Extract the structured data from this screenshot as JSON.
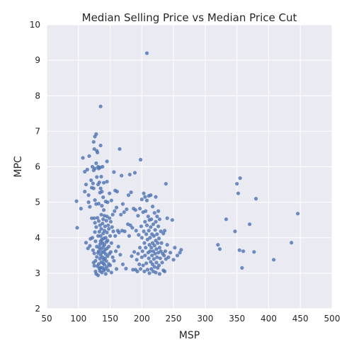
{
  "chart_data": {
    "type": "scatter",
    "title": "Median Selling Price vs Median Price Cut",
    "xlabel": "MSP",
    "ylabel": "MPC",
    "xlim": [
      50,
      500
    ],
    "ylim": [
      2,
      10
    ],
    "xticks": [
      "50",
      "100",
      "150",
      "200",
      "250",
      "300",
      "350",
      "400",
      "450",
      "500"
    ],
    "yticks": [
      "2",
      "3",
      "4",
      "5",
      "6",
      "7",
      "8",
      "9",
      "10"
    ],
    "grid": true,
    "legend": "none",
    "color": "#4c72b0",
    "background": "#eaeaf2",
    "series": [
      {
        "points": [
          [
            97,
            5.03
          ],
          [
            98,
            4.28
          ],
          [
            104,
            4.82
          ],
          [
            107,
            6.25
          ],
          [
            110,
            5.86
          ],
          [
            110,
            5.3
          ],
          [
            112,
            5.5
          ],
          [
            112,
            3.86
          ],
          [
            114,
            5.92
          ],
          [
            115,
            3.7
          ],
          [
            116,
            5.2
          ],
          [
            116,
            5.0
          ],
          [
            117,
            6.3
          ],
          [
            118,
            3.77
          ],
          [
            118,
            4.87
          ],
          [
            119,
            3.97
          ],
          [
            120,
            5.62
          ],
          [
            121,
            5.41
          ],
          [
            121,
            4.55
          ],
          [
            122,
            6.0
          ],
          [
            122,
            4.0
          ],
          [
            123,
            5.53
          ],
          [
            123,
            3.65
          ],
          [
            124,
            6.7
          ],
          [
            124,
            5.9
          ],
          [
            124,
            5.39
          ],
          [
            124,
            3.3
          ],
          [
            125,
            6.5
          ],
          [
            125,
            4.55
          ],
          [
            125,
            3.56
          ],
          [
            125,
            3.21
          ],
          [
            126,
            6.85
          ],
          [
            126,
            5.95
          ],
          [
            126,
            5.06
          ],
          [
            126,
            4.42
          ],
          [
            126,
            4.16
          ],
          [
            127,
            3.9
          ],
          [
            127,
            3.35
          ],
          [
            127,
            3.05
          ],
          [
            128,
            6.92
          ],
          [
            128,
            6.1
          ],
          [
            128,
            4.95
          ],
          [
            128,
            4.3
          ],
          [
            128,
            2.98
          ],
          [
            129,
            6.45
          ],
          [
            129,
            5.71
          ],
          [
            129,
            3.75
          ],
          [
            129,
            3.46
          ],
          [
            130,
            6.4
          ],
          [
            130,
            4.56
          ],
          [
            130,
            3.2
          ],
          [
            131,
            6.0
          ],
          [
            131,
            5.5
          ],
          [
            131,
            4.05
          ],
          [
            131,
            3.57
          ],
          [
            131,
            2.94
          ],
          [
            132,
            5.95
          ],
          [
            132,
            4.96
          ],
          [
            132,
            4.47
          ],
          [
            132,
            3.62
          ],
          [
            132,
            3.26
          ],
          [
            133,
            5.56
          ],
          [
            133,
            4.17
          ],
          [
            133,
            3.72
          ],
          [
            133,
            3.13
          ],
          [
            134,
            5.98
          ],
          [
            134,
            5.27
          ],
          [
            134,
            4.35
          ],
          [
            134,
            3.81
          ],
          [
            134,
            3.41
          ],
          [
            134,
            3.06
          ],
          [
            135,
            7.7
          ],
          [
            135,
            6.6
          ],
          [
            135,
            5.39
          ],
          [
            135,
            4.05
          ],
          [
            135,
            3.9
          ],
          [
            135,
            3.51
          ],
          [
            135,
            3.16
          ],
          [
            136,
            5.72
          ],
          [
            136,
            4.65
          ],
          [
            136,
            4.25
          ],
          [
            136,
            3.68
          ],
          [
            136,
            3.31
          ],
          [
            137,
            5.3
          ],
          [
            137,
            4.9
          ],
          [
            137,
            3.95
          ],
          [
            137,
            3.58
          ],
          [
            137,
            3.02
          ],
          [
            138,
            6.0
          ],
          [
            138,
            4.4
          ],
          [
            138,
            3.85
          ],
          [
            138,
            3.45
          ],
          [
            138,
            3.15
          ],
          [
            139,
            5.14
          ],
          [
            139,
            4.52
          ],
          [
            139,
            4.12
          ],
          [
            139,
            3.74
          ],
          [
            139,
            3.28
          ],
          [
            140,
            5.55
          ],
          [
            140,
            4.78
          ],
          [
            140,
            3.98
          ],
          [
            140,
            3.6
          ],
          [
            140,
            3.38
          ],
          [
            140,
            3.08
          ],
          [
            141,
            4.62
          ],
          [
            141,
            4.2
          ],
          [
            141,
            3.8
          ],
          [
            141,
            3.24
          ],
          [
            142,
            4.32
          ],
          [
            142,
            3.66
          ],
          [
            142,
            3.42
          ],
          [
            142,
            3.12
          ],
          [
            143,
            5.02
          ],
          [
            143,
            4.0
          ],
          [
            143,
            3.54
          ],
          [
            143,
            2.98
          ],
          [
            144,
            4.48
          ],
          [
            144,
            3.88
          ],
          [
            144,
            3.34
          ],
          [
            145,
            6.15
          ],
          [
            145,
            5.58
          ],
          [
            145,
            4.6
          ],
          [
            145,
            4.15
          ],
          [
            145,
            3.7
          ],
          [
            145,
            3.18
          ],
          [
            146,
            5.0
          ],
          [
            146,
            3.92
          ],
          [
            146,
            3.48
          ],
          [
            147,
            4.35
          ],
          [
            147,
            3.08
          ],
          [
            148,
            4.25
          ],
          [
            148,
            3.75
          ],
          [
            148,
            3.26
          ],
          [
            149,
            5.25
          ],
          [
            149,
            4.55
          ],
          [
            149,
            3.55
          ],
          [
            150,
            4.05
          ],
          [
            150,
            3.22
          ],
          [
            151,
            4.45
          ],
          [
            151,
            3.6
          ],
          [
            152,
            5.05
          ],
          [
            152,
            3.85
          ],
          [
            152,
            3.02
          ],
          [
            153,
            4.3
          ],
          [
            154,
            4.65
          ],
          [
            154,
            3.45
          ],
          [
            155,
            4.18
          ],
          [
            156,
            5.85
          ],
          [
            156,
            3.35
          ],
          [
            157,
            4.75
          ],
          [
            158,
            5.33
          ],
          [
            158,
            4.05
          ],
          [
            159,
            3.62
          ],
          [
            160,
            4.85
          ],
          [
            160,
            3.12
          ],
          [
            161,
            5.3
          ],
          [
            162,
            4.2
          ],
          [
            163,
            3.75
          ],
          [
            164,
            4.15
          ],
          [
            165,
            6.5
          ],
          [
            166,
            3.52
          ],
          [
            167,
            4.65
          ],
          [
            168,
            5.75
          ],
          [
            169,
            4.2
          ],
          [
            170,
            3.25
          ],
          [
            170,
            4.95
          ],
          [
            172,
            4.72
          ],
          [
            173,
            4.18
          ],
          [
            175,
            3.13
          ],
          [
            176,
            4.8
          ],
          [
            178,
            4.38
          ],
          [
            179,
            5.2
          ],
          [
            180,
            4.05
          ],
          [
            181,
            5.78
          ],
          [
            182,
            4.35
          ],
          [
            183,
            5.28
          ],
          [
            184,
            3.48
          ],
          [
            185,
            4.28
          ],
          [
            186,
            3.1
          ],
          [
            187,
            4.82
          ],
          [
            188,
            3.6
          ],
          [
            189,
            5.83
          ],
          [
            190,
            4.78
          ],
          [
            190,
            3.1
          ],
          [
            191,
            4.2
          ],
          [
            192,
            3.38
          ],
          [
            193,
            3.05
          ],
          [
            194,
            4.62
          ],
          [
            194,
            3.55
          ],
          [
            195,
            4.08
          ],
          [
            196,
            3.25
          ],
          [
            197,
            4.82
          ],
          [
            197,
            3.72
          ],
          [
            198,
            6.2
          ],
          [
            198,
            3.12
          ],
          [
            199,
            4.32
          ],
          [
            200,
            5.08
          ],
          [
            200,
            4.0
          ],
          [
            200,
            3.45
          ],
          [
            201,
            3.62
          ],
          [
            202,
            4.72
          ],
          [
            202,
            3.22
          ],
          [
            203,
            5.25
          ],
          [
            203,
            4.18
          ],
          [
            204,
            3.85
          ],
          [
            204,
            3.05
          ],
          [
            205,
            5.15
          ],
          [
            205,
            4.45
          ],
          [
            205,
            3.5
          ],
          [
            206,
            4.75
          ],
          [
            206,
            3.72
          ],
          [
            207,
            4.1
          ],
          [
            207,
            3.28
          ],
          [
            208,
            9.2
          ],
          [
            208,
            5.05
          ],
          [
            208,
            4.35
          ],
          [
            209,
            3.95
          ],
          [
            209,
            3.1
          ],
          [
            210,
            4.6
          ],
          [
            210,
            3.58
          ],
          [
            211,
            5.18
          ],
          [
            211,
            4.2
          ],
          [
            211,
            3.42
          ],
          [
            212,
            4.5
          ],
          [
            212,
            3.8
          ],
          [
            212,
            3.0
          ],
          [
            213,
            4.0
          ],
          [
            213,
            3.62
          ],
          [
            214,
            5.2
          ],
          [
            214,
            4.3
          ],
          [
            214,
            3.32
          ],
          [
            215,
            4.52
          ],
          [
            215,
            3.72
          ],
          [
            215,
            3.12
          ],
          [
            216,
            4.1
          ],
          [
            216,
            3.5
          ],
          [
            217,
            4.88
          ],
          [
            217,
            3.85
          ],
          [
            217,
            3.25
          ],
          [
            218,
            4.38
          ],
          [
            218,
            3.62
          ],
          [
            218,
            3.05
          ],
          [
            219,
            4.05
          ],
          [
            219,
            3.4
          ],
          [
            220,
            4.7
          ],
          [
            220,
            3.78
          ],
          [
            220,
            3.18
          ],
          [
            221,
            4.22
          ],
          [
            221,
            3.55
          ],
          [
            222,
            5.15
          ],
          [
            222,
            4.45
          ],
          [
            222,
            3.92
          ],
          [
            222,
            3.02
          ],
          [
            223,
            3.68
          ],
          [
            223,
            3.3
          ],
          [
            224,
            4.6
          ],
          [
            224,
            4.1
          ],
          [
            224,
            3.45
          ],
          [
            225,
            3.85
          ],
          [
            225,
            3.15
          ],
          [
            226,
            4.75
          ],
          [
            226,
            4.32
          ],
          [
            226,
            3.58
          ],
          [
            227,
            3.98
          ],
          [
            227,
            3.22
          ],
          [
            228,
            4.52
          ],
          [
            228,
            3.72
          ],
          [
            228,
            2.98
          ],
          [
            229,
            3.42
          ],
          [
            230,
            4.18
          ],
          [
            230,
            3.62
          ],
          [
            231,
            3.85
          ],
          [
            232,
            3.3
          ],
          [
            233,
            3.55
          ],
          [
            234,
            4.12
          ],
          [
            234,
            3.08
          ],
          [
            235,
            3.5
          ],
          [
            236,
            4.2
          ],
          [
            236,
            3.05
          ],
          [
            237,
            3.62
          ],
          [
            238,
            5.52
          ],
          [
            238,
            3.4
          ],
          [
            240,
            3.8
          ],
          [
            240,
            4.55
          ],
          [
            242,
            3.45
          ],
          [
            245,
            3.58
          ],
          [
            248,
            4.5
          ],
          [
            250,
            3.38
          ],
          [
            252,
            3.72
          ],
          [
            256,
            3.5
          ],
          [
            260,
            3.58
          ],
          [
            262,
            3.66
          ],
          [
            320,
            3.8
          ],
          [
            323,
            3.68
          ],
          [
            333,
            4.52
          ],
          [
            347,
            4.18
          ],
          [
            350,
            5.52
          ],
          [
            352,
            5.25
          ],
          [
            354,
            3.65
          ],
          [
            355,
            5.68
          ],
          [
            358,
            3.15
          ],
          [
            360,
            3.62
          ],
          [
            370,
            4.38
          ],
          [
            377,
            3.6
          ],
          [
            380,
            5.1
          ],
          [
            408,
            3.38
          ],
          [
            436,
            3.86
          ],
          [
            446,
            4.68
          ]
        ]
      }
    ]
  }
}
